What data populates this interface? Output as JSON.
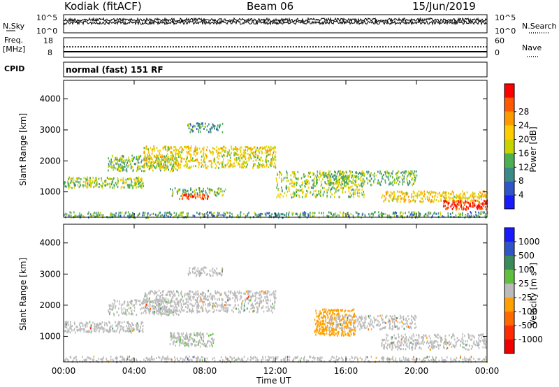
{
  "header": {
    "station": "Kodiak (fitACF)",
    "beam": "Beam 06",
    "date": "15/Jun/2019"
  },
  "noise_panel": {
    "left_label": "N.Sky",
    "right_label": "N.Search",
    "ytick_top": "10^5",
    "ytick_bottom": "10^0"
  },
  "freq_panel": {
    "left_label_line1": "Freq.",
    "left_label_line2": "[MHz]",
    "left_ticks": [
      "18",
      "8"
    ],
    "right_label": "Nave",
    "right_ticks": [
      "60",
      "0"
    ]
  },
  "cpid_panel": {
    "label": "CPID",
    "text": "normal (fast) 151 RF"
  },
  "chart_data": [
    {
      "type": "heatmap",
      "title": "",
      "xlabel": "Time UT",
      "ylabel": "Slant Range [km]",
      "xlim": [
        0,
        24
      ],
      "ylim": [
        180,
        4600
      ],
      "xticks": [
        "00:00",
        "04:00",
        "08:00",
        "12:00",
        "16:00",
        "20:00",
        "00:00"
      ],
      "yticks": [
        1000,
        2000,
        3000,
        4000
      ],
      "colorbar": {
        "label": "Power [dB]",
        "ticks": [
          "4",
          "8",
          "12",
          "16",
          "20",
          "24",
          "28"
        ],
        "colors": [
          "#1a1aff",
          "#2f55c6",
          "#3a8a8a",
          "#4caf50",
          "#c8d400",
          "#ffcc00",
          "#ff9900",
          "#ff5a00",
          "#ff0000"
        ],
        "range": [
          0,
          30
        ]
      },
      "features": [
        {
          "t0": 0.0,
          "t1": 24.0,
          "r0": 200,
          "r1": 380,
          "value": 10,
          "density": 0.55
        },
        {
          "t0": 0.0,
          "t1": 4.5,
          "r0": 1150,
          "r1": 1500,
          "value": 14,
          "density": 0.7
        },
        {
          "t0": 2.5,
          "t1": 6.5,
          "r0": 1700,
          "r1": 2200,
          "value": 13,
          "density": 0.6
        },
        {
          "t0": 4.5,
          "t1": 12.0,
          "r0": 1800,
          "r1": 2500,
          "value": 17,
          "density": 0.6
        },
        {
          "t0": 7.0,
          "t1": 9.0,
          "r0": 2950,
          "r1": 3250,
          "value": 10,
          "density": 0.55
        },
        {
          "t0": 6.0,
          "t1": 9.2,
          "r0": 900,
          "r1": 1150,
          "value": 12,
          "density": 0.5
        },
        {
          "t0": 6.5,
          "t1": 8.2,
          "r0": 800,
          "r1": 950,
          "value": 26,
          "density": 0.85
        },
        {
          "t0": 12.0,
          "t1": 17.0,
          "r0": 850,
          "r1": 1700,
          "value": 14,
          "density": 0.45
        },
        {
          "t0": 15.0,
          "t1": 20.0,
          "r0": 1250,
          "r1": 1700,
          "value": 12,
          "density": 0.5
        },
        {
          "t0": 18.0,
          "t1": 24.0,
          "r0": 700,
          "r1": 1050,
          "value": 18,
          "density": 0.6
        },
        {
          "t0": 21.5,
          "t1": 24.0,
          "r0": 450,
          "r1": 750,
          "value": 28,
          "density": 0.8
        }
      ]
    },
    {
      "type": "heatmap",
      "title": "",
      "xlabel": "Time UT",
      "ylabel": "Slant Range [km]",
      "xlim": [
        0,
        24
      ],
      "ylim": [
        180,
        4600
      ],
      "xticks": [
        "00:00",
        "04:00",
        "08:00",
        "12:00",
        "16:00",
        "20:00",
        "00:00"
      ],
      "yticks": [
        1000,
        2000,
        3000,
        4000
      ],
      "colorbar": {
        "label": "Velocity [m s^-1]",
        "ticks": [
          "1000",
          "500",
          "100",
          "25",
          "-25",
          "-100",
          "-500",
          "-1000"
        ],
        "colors": [
          "#1a1aff",
          "#2f55c6",
          "#3a8a5a",
          "#5fc040",
          "#bbbbbb",
          "#ffa000",
          "#ff6a00",
          "#ff2a00",
          "#ee0000"
        ],
        "range": [
          -1000,
          1000
        ]
      },
      "features": [
        {
          "t0": 0.0,
          "t1": 24.0,
          "r0": 200,
          "r1": 380,
          "value": 0,
          "density": 0.5
        },
        {
          "t0": 0.0,
          "t1": 4.5,
          "r0": 1150,
          "r1": 1500,
          "value": 0,
          "density": 0.65
        },
        {
          "t0": 2.5,
          "t1": 6.5,
          "r0": 1700,
          "r1": 2200,
          "value": 60,
          "density": 0.5
        },
        {
          "t0": 4.5,
          "t1": 12.0,
          "r0": 1800,
          "r1": 2500,
          "value": 0,
          "density": 0.55
        },
        {
          "t0": 7.0,
          "t1": 9.0,
          "r0": 2950,
          "r1": 3250,
          "value": 0,
          "density": 0.5
        },
        {
          "t0": 6.0,
          "t1": 8.5,
          "r0": 700,
          "r1": 1150,
          "value": 80,
          "density": 0.7
        },
        {
          "t0": 14.2,
          "t1": 16.5,
          "r0": 1050,
          "r1": 1900,
          "value": -200,
          "density": 0.7
        },
        {
          "t0": 15.0,
          "t1": 20.0,
          "r0": 1250,
          "r1": 1700,
          "value": 0,
          "density": 0.5
        },
        {
          "t0": 18.0,
          "t1": 24.0,
          "r0": 600,
          "r1": 1100,
          "value": 0,
          "density": 0.5
        }
      ]
    }
  ]
}
